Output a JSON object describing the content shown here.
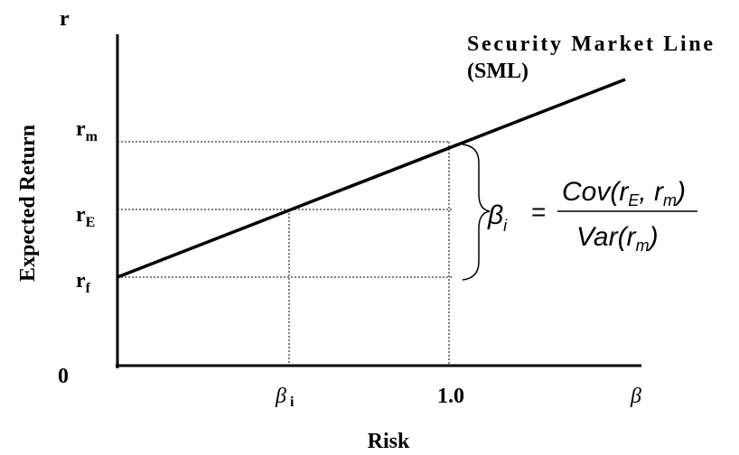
{
  "axis": {
    "y_symbol": "r",
    "origin": "0",
    "y_title": "Expected Return",
    "x_title": "Risk"
  },
  "y_labels": [
    {
      "base": "r",
      "sub": "m"
    },
    {
      "base": "r",
      "sub": "E"
    },
    {
      "base": "r",
      "sub": "f"
    }
  ],
  "x_labels": [
    {
      "base": "β",
      "sub": "i"
    },
    {
      "base": "1.0"
    },
    {
      "base": "β"
    }
  ],
  "line_label": {
    "line1": "Security Market Line",
    "line2": "(SML)"
  },
  "formula": {
    "lhs": "β",
    "lhs_sub": "i",
    "eq": "=",
    "num_a": "Cov(r",
    "num_sub1": "E",
    "num_b": ", r",
    "num_sub2": "m",
    "num_c": ")",
    "den_a": "Var(r",
    "den_sub": "m",
    "den_b": ")"
  }
}
